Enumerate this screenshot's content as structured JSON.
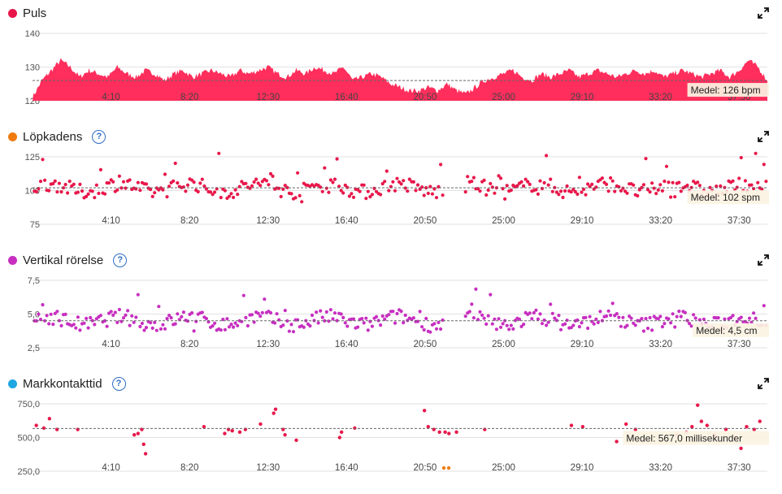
{
  "panels": [
    {
      "id": "puls",
      "title": "Puls",
      "dot_color": "#e8174a",
      "has_help": false,
      "y_ticks": [
        "140",
        "130",
        "120"
      ],
      "avg_label": "Medel: 126 bpm",
      "x_ticks": [
        "4:10",
        "8:20",
        "12:30",
        "16:40",
        "20:50",
        "25:00",
        "29:10",
        "33:20",
        "37:30"
      ]
    },
    {
      "id": "lopkadens",
      "title": "Löpkadens",
      "dot_color": "#f07c0e",
      "has_help": true,
      "help_symbol": "?",
      "y_ticks": [
        "125",
        "100",
        "75"
      ],
      "avg_label": "Medel: 102 spm",
      "x_ticks": [
        "4:10",
        "8:20",
        "12:30",
        "16:40",
        "20:50",
        "25:00",
        "29:10",
        "33:20",
        "37:30"
      ]
    },
    {
      "id": "vertikal",
      "title": "Vertikal rörelse",
      "dot_color": "#c72fc0",
      "has_help": true,
      "help_symbol": "?",
      "y_ticks": [
        "7,5",
        "5,0",
        "2,5"
      ],
      "avg_label": "Medel: 4,5 cm",
      "x_ticks": [
        "4:10",
        "8:20",
        "12:30",
        "16:40",
        "20:50",
        "25:00",
        "29:10",
        "33:20",
        "37:30"
      ]
    },
    {
      "id": "markkontakt",
      "title": "Markkontakttid",
      "dot_color": "#1ea7e1",
      "has_help": true,
      "help_symbol": "?",
      "y_ticks": [
        "750,0",
        "500,0",
        "250,0"
      ],
      "avg_label": "Medel: 567,0 millisekunder",
      "x_ticks": [
        "4:10",
        "8:20",
        "12:30",
        "16:40",
        "20:50",
        "25:00",
        "29:10",
        "33:20",
        "37:30"
      ]
    }
  ],
  "chart_data": [
    {
      "type": "area",
      "title": "Puls",
      "x_unit": "minutes",
      "x_range": [
        0,
        39
      ],
      "ylim": [
        120,
        140
      ],
      "average": 126,
      "color": "#ff2e5c",
      "series": [
        {
          "x": [
            0,
            0.5,
            1,
            1.5,
            2,
            2.5,
            3,
            3.5,
            4,
            4.5,
            5,
            5.5,
            6,
            6.5,
            7,
            7.5,
            8,
            8.5,
            9,
            9.5,
            10,
            10.5,
            11,
            11.5,
            12,
            12.5,
            13,
            13.5,
            14,
            14.5,
            15,
            15.5,
            16,
            16.5,
            17,
            17.5,
            18,
            18.5,
            19,
            19.5,
            20,
            20.5,
            21,
            21.5,
            22,
            22.5,
            23,
            23.5,
            24,
            24.5,
            25,
            25.5,
            26,
            26.5,
            27,
            27.5,
            28,
            28.5,
            29,
            29.5,
            30,
            30.5,
            31,
            31.5,
            32,
            32.5,
            33,
            33.5,
            34,
            34.5,
            35,
            35.5,
            36,
            36.5,
            37,
            37.5,
            38,
            38.5,
            39
          ],
          "values": [
            121,
            126,
            129,
            132,
            130,
            127,
            129,
            128,
            127,
            130,
            128,
            127,
            129,
            128,
            126,
            128,
            129,
            127,
            128,
            129,
            128,
            127,
            129,
            128,
            129,
            130,
            128,
            127,
            129,
            128,
            130,
            129,
            128,
            130,
            126,
            127,
            128,
            127,
            125,
            124,
            123,
            123,
            124,
            123,
            125,
            123,
            122,
            124,
            126,
            127,
            128,
            129,
            127,
            126,
            128,
            127,
            128,
            129,
            127,
            128,
            129,
            128,
            127,
            128,
            129,
            128,
            129,
            127,
            128,
            129,
            128,
            127,
            128,
            129,
            127,
            129,
            132,
            130,
            126
          ]
        }
      ]
    },
    {
      "type": "scatter",
      "title": "Löpkadens",
      "x_unit": "minutes",
      "x_range": [
        0,
        39
      ],
      "ylim": [
        75,
        125
      ],
      "average": 102,
      "color": "#e8174a",
      "highlight_color": "#f5a0b0"
    },
    {
      "type": "scatter",
      "title": "Vertikal rörelse",
      "x_unit": "minutes",
      "x_range": [
        0,
        39
      ],
      "ylim": [
        2.5,
        7.5
      ],
      "average": 4.5,
      "color": "#c72fc0",
      "outlier_color": "#1ea7e1"
    },
    {
      "type": "scatter",
      "title": "Markkontakttid",
      "x_unit": "minutes",
      "x_range": [
        0,
        39
      ],
      "ylim": [
        250,
        750
      ],
      "average": 567,
      "color": "#e8174a",
      "outlier_color": "#f07c0e",
      "series": [
        {
          "x": [
            0.2,
            0.6,
            0.9,
            1.3,
            2.4,
            5.4,
            5.6,
            5.8,
            5.9,
            6.0,
            9.1,
            10.2,
            10.4,
            10.6,
            11.0,
            11.3,
            12.1,
            12.9,
            12.8,
            13.3,
            13.4,
            14.0,
            16.3,
            16.4,
            17.1,
            20.8,
            21.0,
            21.3,
            21.6,
            21.9,
            22.1,
            22.5,
            24.0,
            28.6,
            29.2,
            31.0,
            31.5,
            32.0,
            32.5,
            34.2,
            34.7,
            35.0,
            35.3,
            35.5,
            35.8,
            36.2,
            36.8,
            37.3,
            37.6,
            37.9,
            38.3,
            38.6
          ],
          "values": [
            590,
            570,
            640,
            560,
            560,
            520,
            530,
            560,
            450,
            380,
            580,
            530,
            560,
            550,
            540,
            560,
            600,
            710,
            680,
            560,
            520,
            480,
            500,
            540,
            570,
            700,
            580,
            560,
            540,
            540,
            530,
            540,
            560,
            590,
            580,
            470,
            600,
            560,
            480,
            520,
            540,
            580,
            740,
            620,
            590,
            520,
            560,
            500,
            420,
            580,
            560,
            620
          ]
        }
      ]
    }
  ]
}
